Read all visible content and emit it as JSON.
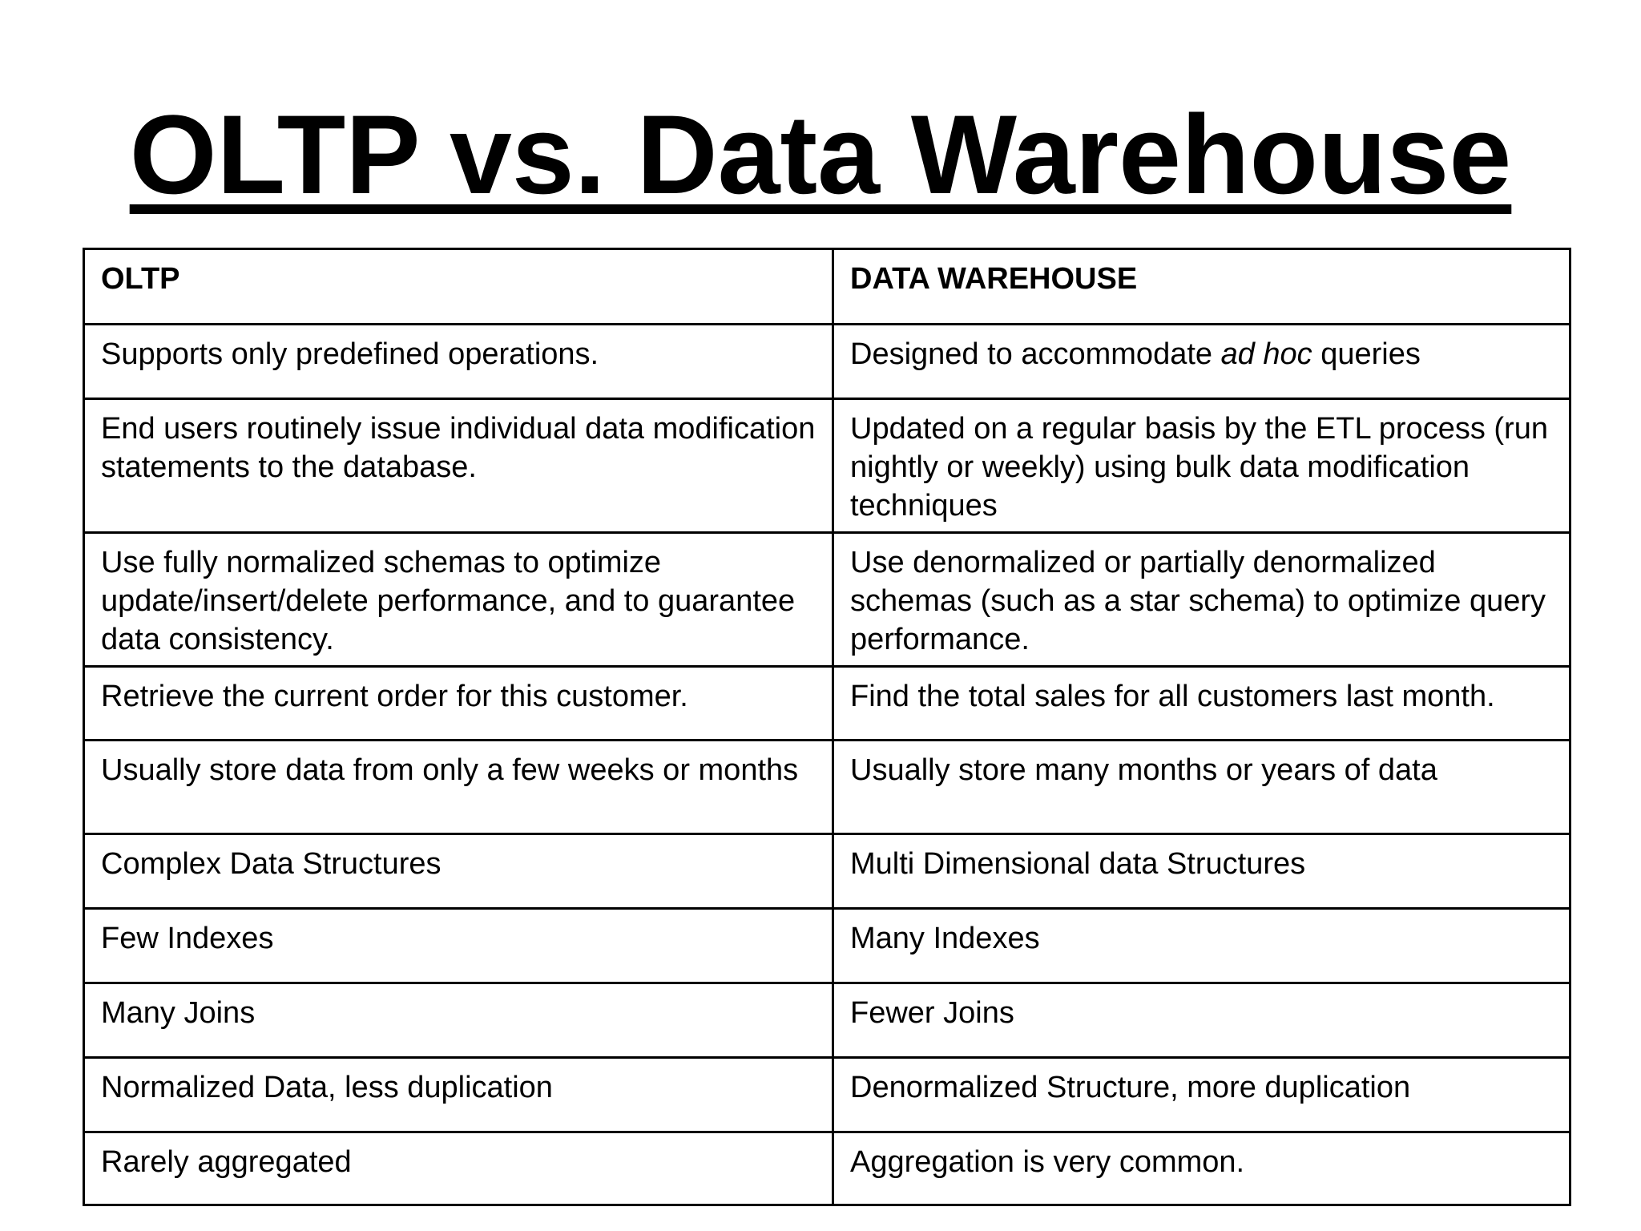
{
  "title": "OLTP vs. Data Warehouse",
  "table": {
    "headers": {
      "oltp": "OLTP",
      "dw": "DATA WAREHOUSE"
    },
    "rows": [
      {
        "oltp": "Supports only predefined operations.",
        "dw_before": "Designed to accommodate ",
        "dw_italic": "ad hoc",
        "dw_after": " queries"
      },
      {
        "oltp": "End users routinely issue individual data modification statements to the database.",
        "dw": "Updated on a regular basis by the ETL process (run nightly or weekly) using bulk data modification techniques"
      },
      {
        "oltp": "Use fully normalized schemas to optimize update/insert/delete performance, and to guarantee data consistency.",
        "dw": "Use denormalized or partially denormalized schemas (such as a star schema) to optimize query performance."
      },
      {
        "oltp": "Retrieve the current order for this customer.",
        "dw": "Find the total sales for all customers last month."
      },
      {
        "oltp": "Usually store data from only a few weeks or months",
        "dw": "Usually store many months or years of data"
      },
      {
        "oltp": "Complex Data Structures",
        "dw": "Multi Dimensional data Structures"
      },
      {
        "oltp": "Few Indexes",
        "dw": "Many Indexes"
      },
      {
        "oltp": "Many Joins",
        "dw": "Fewer Joins"
      },
      {
        "oltp": "Normalized Data, less duplication",
        "dw": "Denormalized Structure, more duplication"
      },
      {
        "oltp": "Rarely aggregated",
        "dw": "Aggregation is very common."
      }
    ]
  }
}
